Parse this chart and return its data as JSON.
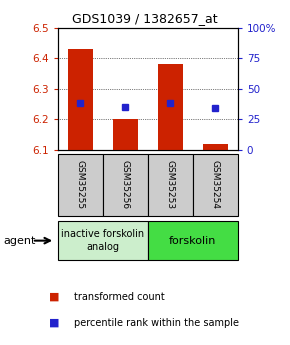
{
  "title": "GDS1039 / 1382657_at",
  "samples": [
    "GSM35255",
    "GSM35256",
    "GSM35253",
    "GSM35254"
  ],
  "bar_base": 6.1,
  "bar_tops": [
    6.43,
    6.2,
    6.38,
    6.12
  ],
  "percentile_values": [
    6.255,
    6.24,
    6.255,
    6.238
  ],
  "ylim": [
    6.1,
    6.5
  ],
  "yticks_left": [
    6.1,
    6.2,
    6.3,
    6.4,
    6.5
  ],
  "yticks_right": [
    0,
    25,
    50,
    75,
    100
  ],
  "ytick_right_labels": [
    "0",
    "25",
    "50",
    "75",
    "100%"
  ],
  "bar_color": "#cc2200",
  "percentile_color": "#2222cc",
  "bar_width": 0.55,
  "agent_label": "agent",
  "group1_label": "inactive forskolin\nanalog",
  "group2_label": "forskolin",
  "group1_samples": [
    0,
    1
  ],
  "group2_samples": [
    2,
    3
  ],
  "group1_bg": "#cceecc",
  "group2_bg": "#44dd44",
  "sample_bg": "#cccccc",
  "legend_bar_label": "transformed count",
  "legend_pct_label": "percentile rank within the sample",
  "left_color": "#cc2200",
  "right_color": "#2222cc",
  "title_fontsize": 9,
  "tick_fontsize": 7.5,
  "sample_fontsize": 6.5,
  "group_fontsize": 7,
  "legend_fontsize": 7
}
